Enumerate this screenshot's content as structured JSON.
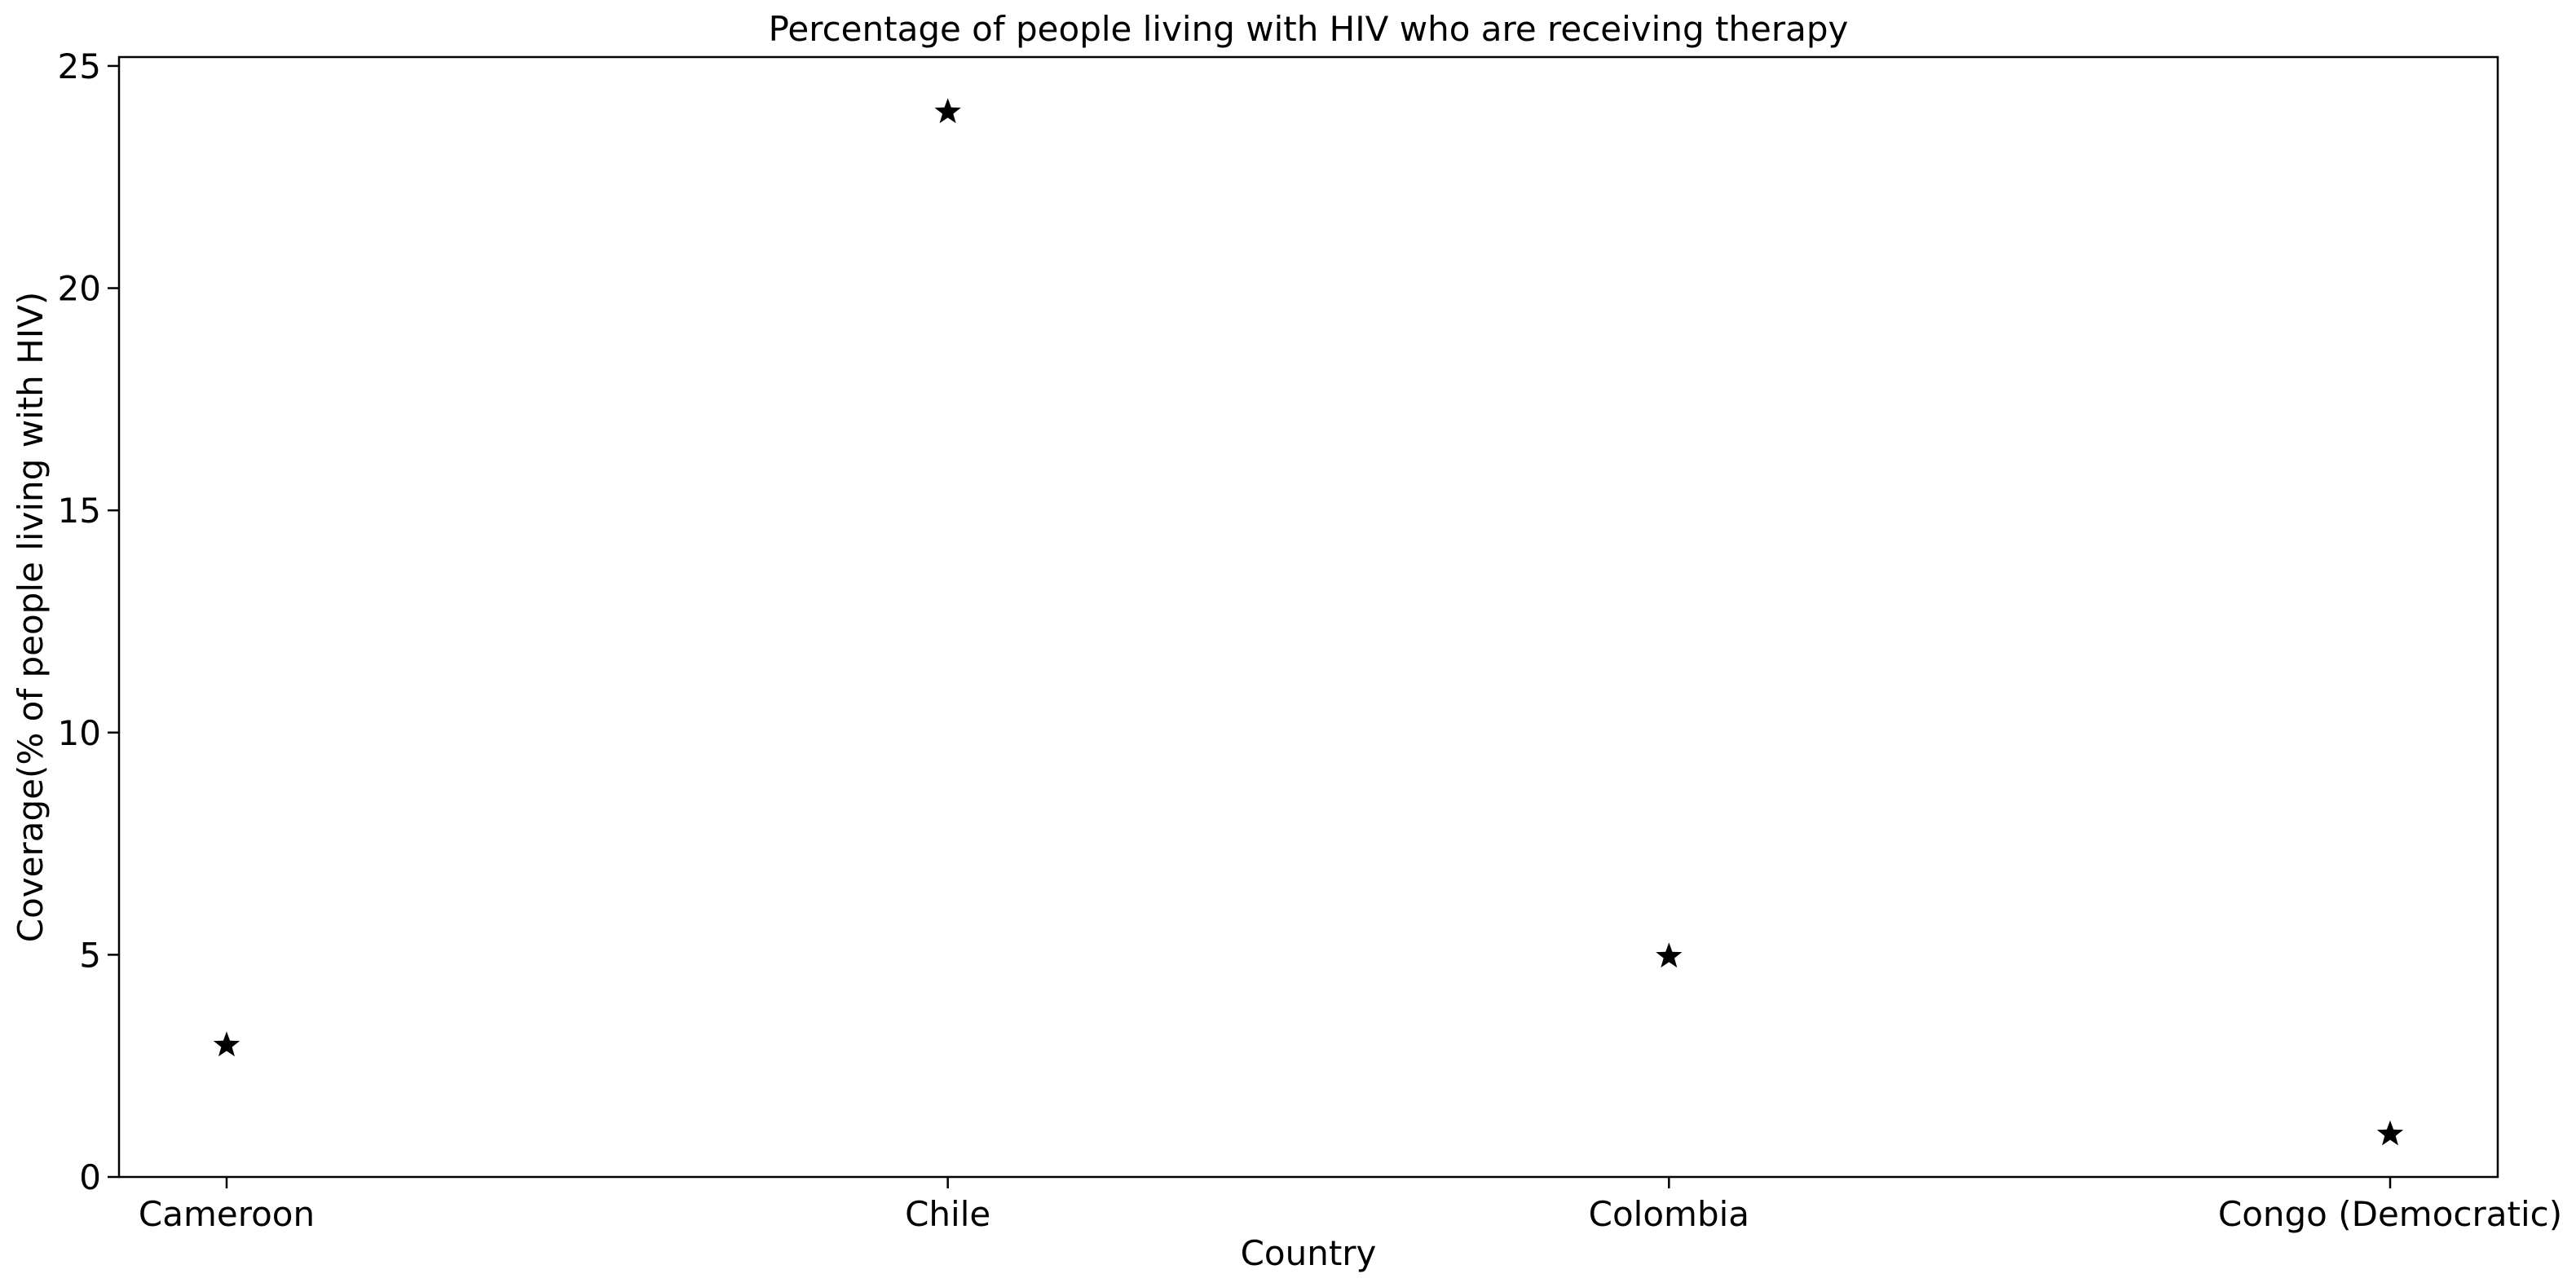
{
  "chart_data": {
    "type": "scatter",
    "title": "Percentage of people living with HIV who are receiving therapy",
    "xlabel": "Country",
    "ylabel": "Coverage(% of people living with HIV)",
    "categories": [
      "Cameroon",
      "Chile",
      "Colombia",
      "Congo (Democratic)"
    ],
    "values": [
      3,
      24,
      5,
      1
    ],
    "yticks": [
      0,
      5,
      10,
      15,
      20,
      25
    ],
    "ylim": [
      0,
      25.2
    ],
    "marker": "star",
    "marker_color": "#000000",
    "grid": false,
    "legend": "none"
  }
}
